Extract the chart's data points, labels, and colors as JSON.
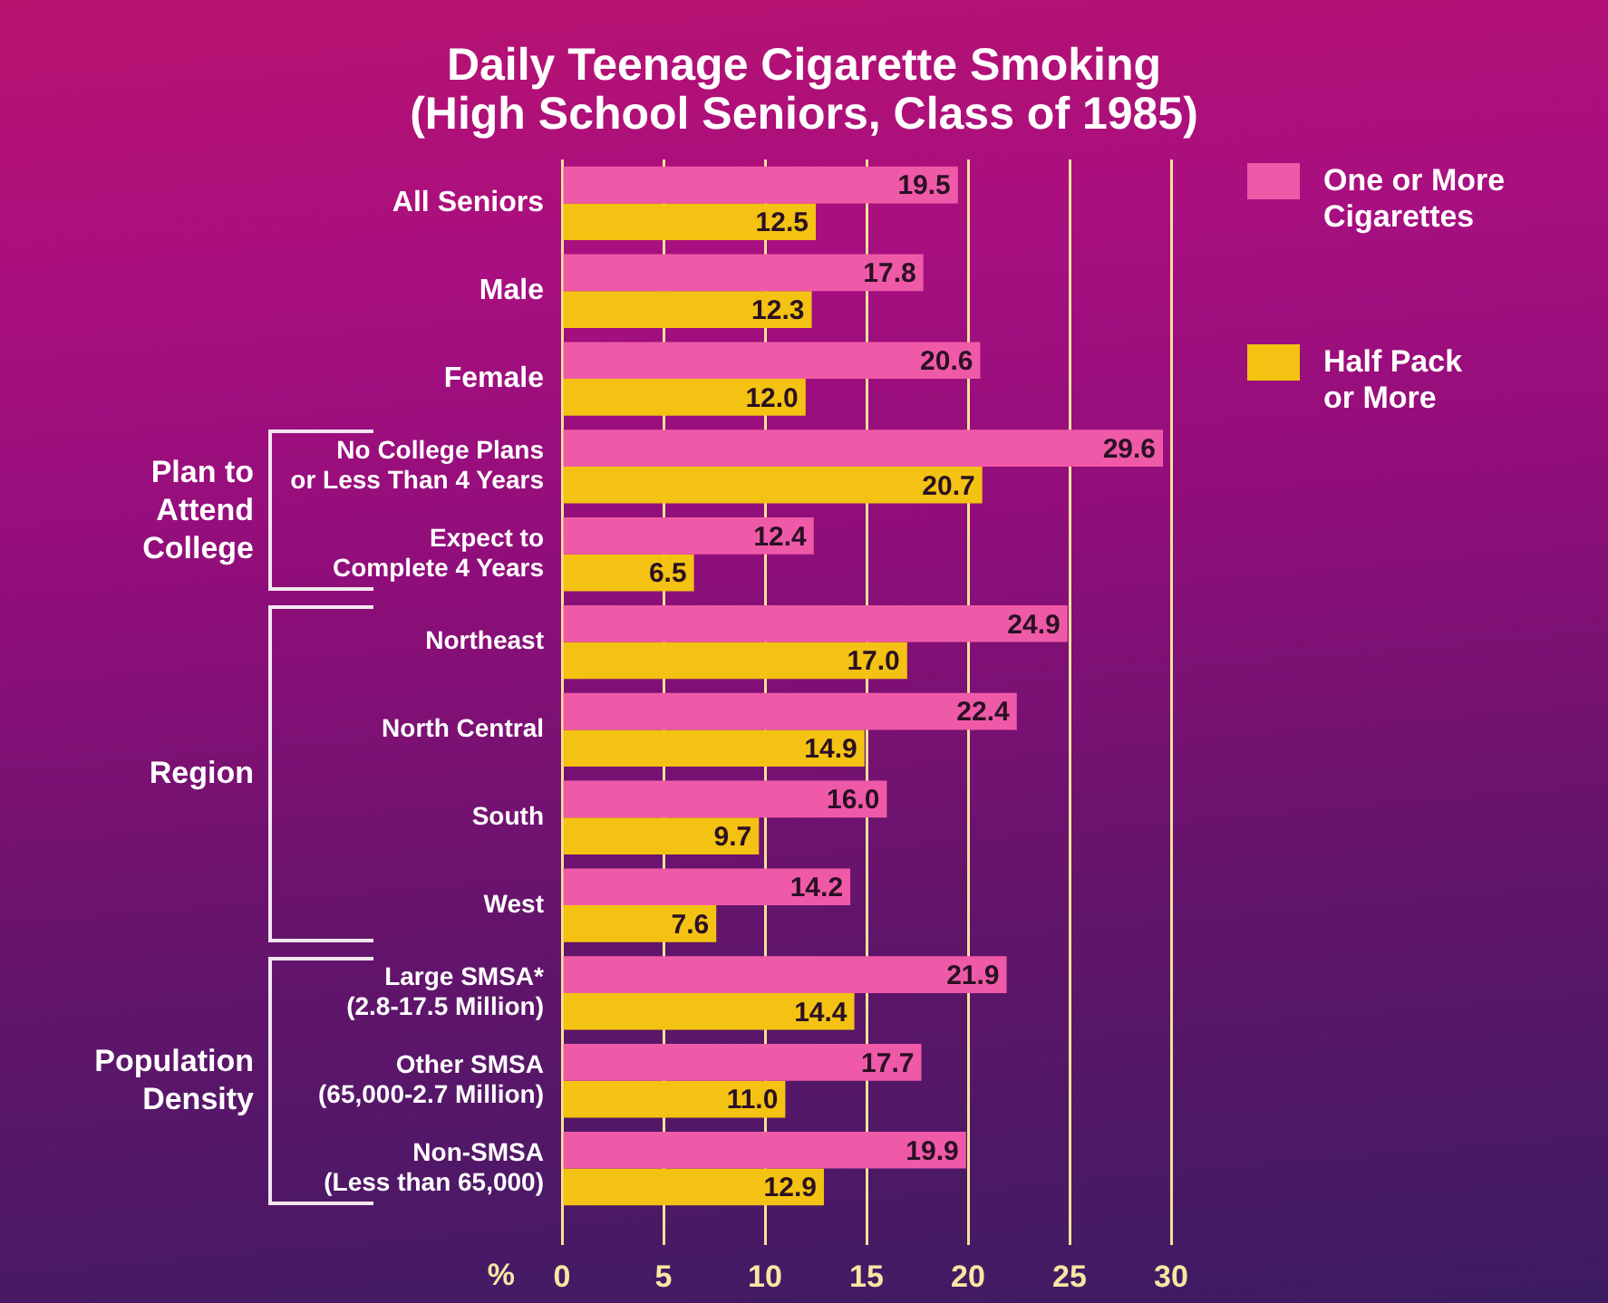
{
  "chart_data": {
    "type": "bar",
    "orientation": "horizontal",
    "title": "Daily Teenage Cigarette Smoking",
    "subtitle": "(High School Seniors, Class of 1985)",
    "xlabel": "%",
    "categories": [
      "All Seniors",
      "Male",
      "Female",
      "No College Plans\nor Less Than 4 Years",
      "Expect to\nComplete 4 Years",
      "Northeast",
      "North Central",
      "South",
      "West",
      "Large SMSA*\n(2.8-17.5 Million)",
      "Other SMSA\n(65,000-2.7 Million)",
      "Non-SMSA\n(Less than 65,000)"
    ],
    "series": [
      {
        "name": "One or More\nCigarettes",
        "color": "#ef5aa8",
        "values": [
          19.5,
          17.8,
          20.6,
          29.6,
          12.4,
          24.9,
          22.4,
          16.0,
          14.2,
          21.9,
          17.7,
          19.9
        ],
        "value_labels": [
          "19.5",
          "17.8",
          "20.6",
          "29.6",
          "12.4",
          "24.9",
          "22.4",
          "16.0",
          "14.2",
          "21.9",
          "17.7",
          "19.9"
        ]
      },
      {
        "name": "Half Pack\nor More",
        "color": "#f4c212",
        "values": [
          12.5,
          12.3,
          12.0,
          20.7,
          6.5,
          17.0,
          14.9,
          9.7,
          7.6,
          14.4,
          11.0,
          12.9
        ],
        "value_labels": [
          "12.5",
          "12.3",
          "12.0",
          "20.7",
          "6.5",
          "17.0",
          "14.9",
          "9.7",
          "7.6",
          "14.4",
          "11.0",
          "12.9"
        ]
      }
    ],
    "xlim": [
      0,
      30
    ],
    "xticks": [
      0,
      5,
      10,
      15,
      20,
      25,
      30
    ],
    "grid": "x",
    "legend": "top right",
    "annotations": [
      "Plan to\nAttend\nCollege",
      "Region",
      "Population\nDensity"
    ]
  }
}
